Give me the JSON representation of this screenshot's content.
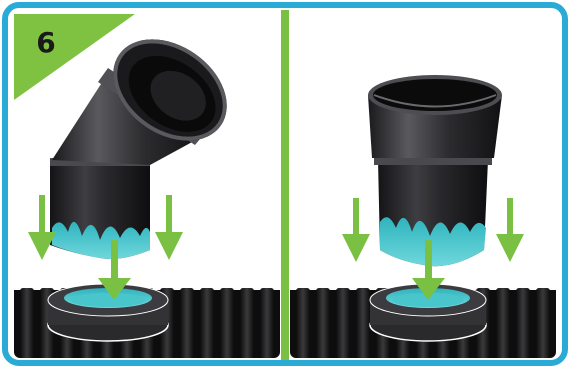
{
  "step": {
    "number": "6"
  },
  "colors": {
    "frame_border": "#29abd6",
    "badge_green": "#7fc242",
    "arrow_green": "#7ac143",
    "divider_green": "#7ac143",
    "pipe_dark": "#1c1c1e",
    "pipe_highlight": "#5a5a5c",
    "glue_teal": "#3fc1c9",
    "background": "#ffffff"
  },
  "panels": [
    {
      "id": "left",
      "pipe": "elbow-fitting",
      "arrows": 3
    },
    {
      "id": "right",
      "pipe": "straight-coupling",
      "arrows": 3
    }
  ]
}
